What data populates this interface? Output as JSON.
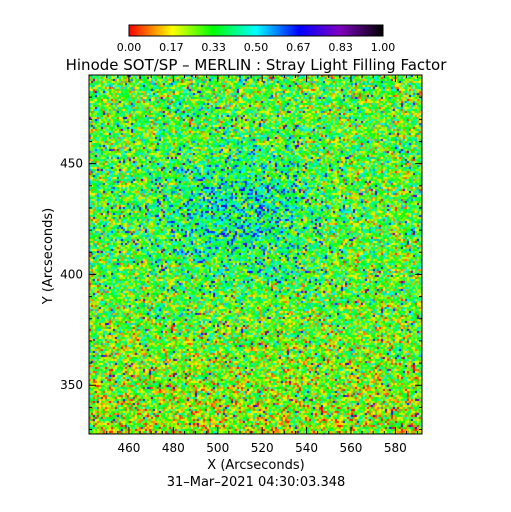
{
  "chart_data": {
    "type": "heatmap",
    "title": "Hinode SOT/SP – MERLIN : Stray Light Filling Factor",
    "xlabel": "X (Arcseconds)",
    "ylabel": "Y (Arcseconds)",
    "xlim": [
      442,
      592
    ],
    "ylim": [
      328,
      490
    ],
    "x_ticks": [
      460,
      480,
      500,
      520,
      540,
      560,
      580
    ],
    "y_ticks": [
      350,
      400,
      450
    ],
    "colorbar": {
      "range": [
        0,
        1
      ],
      "tick_labels": [
        "0.00",
        "0.17",
        "0.33",
        "0.50",
        "0.67",
        "0.83",
        "1.00"
      ],
      "colormap": [
        "#ff0000",
        "#ffff00",
        "#00ff00",
        "#00ffff",
        "#0000ff",
        "#8000c0",
        "#000000"
      ]
    },
    "timestamp": "31–Mar–2021 04:30:03.348"
  }
}
